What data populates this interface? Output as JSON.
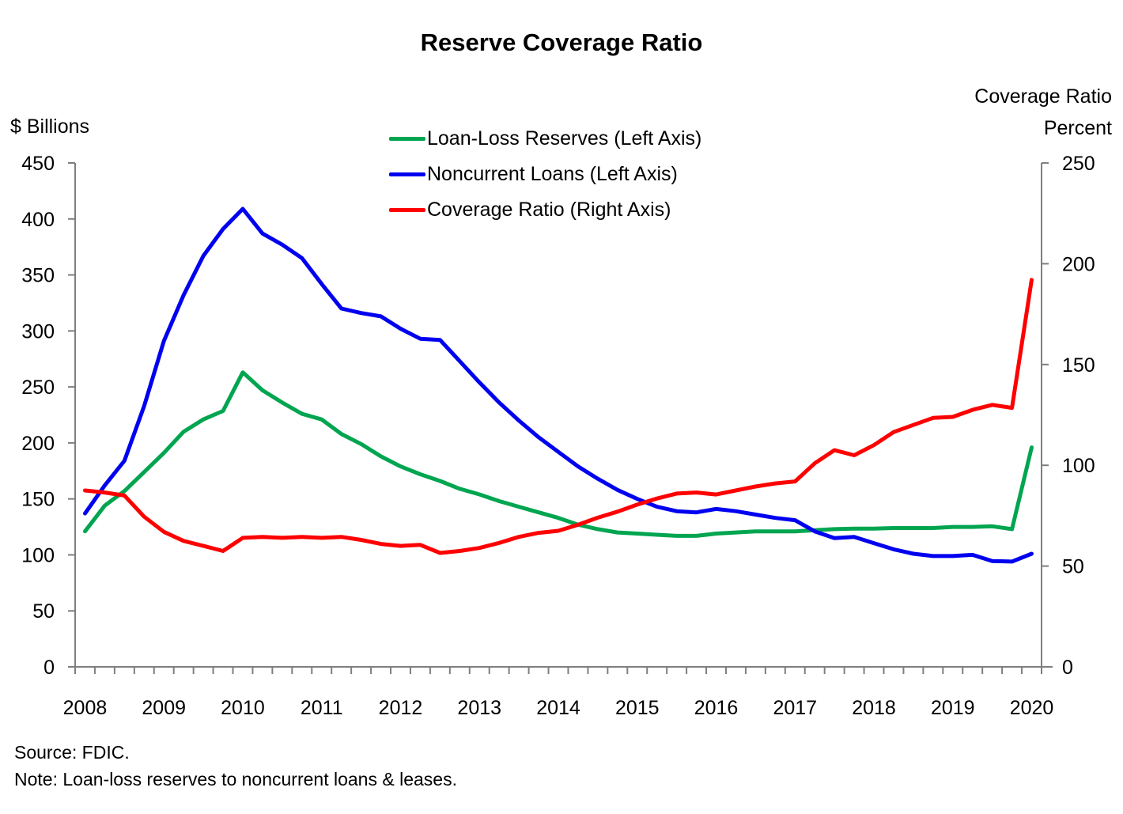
{
  "page": {
    "title": "Reserve Coverage Ratio",
    "left_axis_header": "$ Billions",
    "right_axis_header": [
      "Coverage Ratio",
      "Percent"
    ],
    "source": "Source: FDIC.",
    "note": "Note: Loan-loss reserves to noncurrent loans & leases."
  },
  "colors": {
    "axis": "#7f7f7f",
    "text": "#000000",
    "background": "#ffffff",
    "green": "#00A550",
    "blue": "#0000F0",
    "red": "#FE0000"
  },
  "chart_data": {
    "type": "line",
    "title": "Reserve Coverage Ratio",
    "x_frequency": "quarterly",
    "x_range": [
      "2008Q1",
      "2020Q1"
    ],
    "x_year_labels": [
      "2008",
      "2009",
      "2010",
      "2011",
      "2012",
      "2013",
      "2014",
      "2015",
      "2016",
      "2017",
      "2018",
      "2019",
      "2020"
    ],
    "left_axis": {
      "label": "$ Billions",
      "min": 0,
      "max": 450,
      "step": 50
    },
    "right_axis": {
      "label": "Coverage Ratio Percent",
      "min": 0,
      "max": 250,
      "step": 50
    },
    "legend_position": "top-center",
    "grid": false,
    "series": [
      {
        "name": "Loan-Loss Reserves (Left Axis)",
        "axis": "left",
        "color": "#00A550",
        "values": [
          121,
          144,
          157,
          174,
          191,
          210,
          221,
          228.5,
          263,
          247,
          236,
          226,
          221,
          208,
          199,
          188,
          179,
          172,
          166,
          159,
          154,
          148,
          143,
          138,
          133,
          127,
          123,
          120,
          119,
          118,
          117,
          117,
          119,
          120,
          121,
          121,
          121,
          122,
          123,
          123.5,
          123.5,
          124,
          124,
          124,
          125,
          125,
          125.5,
          123,
          196
        ]
      },
      {
        "name": "Noncurrent Loans (Left Axis)",
        "axis": "left",
        "color": "#0000F0",
        "values": [
          137,
          162,
          184,
          233,
          291,
          332,
          367,
          391,
          409,
          387,
          377,
          365,
          342,
          320,
          316,
          313,
          302,
          293,
          292,
          273,
          254,
          236,
          220,
          205,
          192,
          179,
          168,
          158,
          150,
          143,
          139,
          138,
          141,
          139,
          136,
          133,
          131,
          121,
          115,
          116,
          110.5,
          105,
          101,
          99,
          99,
          100,
          94.5,
          94,
          101
        ]
      },
      {
        "name": "Coverage Ratio (Right Axis)",
        "axis": "right",
        "color": "#FE0000",
        "values": [
          87.5,
          86.5,
          85,
          74.5,
          67,
          62.5,
          60,
          57.5,
          64,
          64.5,
          64,
          64.5,
          64,
          64.5,
          63,
          61,
          60,
          60.5,
          56.5,
          57.5,
          59,
          61.5,
          64.5,
          66.5,
          67.5,
          70.5,
          74,
          77,
          80.5,
          83.5,
          86,
          86.5,
          85.5,
          87.5,
          89.5,
          91,
          92,
          101,
          107.5,
          105,
          110,
          116.5,
          120,
          123.5,
          124,
          127.5,
          130,
          128.5,
          192
        ]
      }
    ]
  }
}
